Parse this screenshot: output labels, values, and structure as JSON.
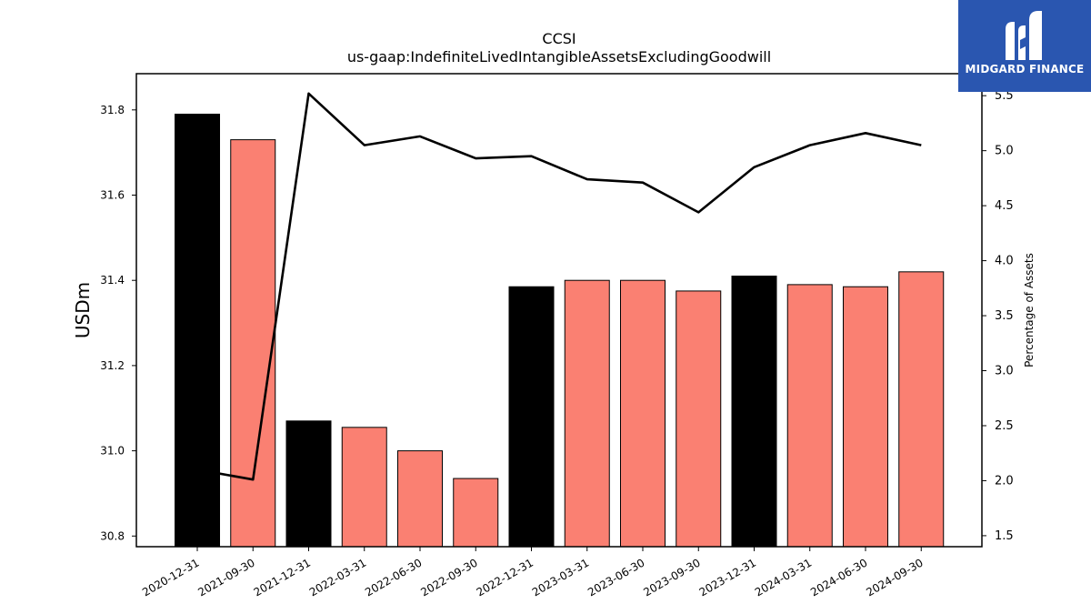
{
  "chart_data": {
    "type": "bar",
    "title": "CCSI",
    "subtitle": "us-gaap:IndefiniteLivedIntangibleAssetsExcludingGoodwill",
    "ylabel": "USDm",
    "y2label": "Percentage of Assets",
    "categories": [
      "2020-12-31",
      "2021-09-30",
      "2021-12-31",
      "2022-03-31",
      "2022-06-30",
      "2022-09-30",
      "2022-12-31",
      "2023-03-31",
      "2023-06-30",
      "2023-09-30",
      "2023-12-31",
      "2024-03-31",
      "2024-06-30",
      "2024-09-30"
    ],
    "series": [
      {
        "type": "bar",
        "values": [
          31.79,
          31.73,
          31.07,
          31.055,
          31.0,
          30.935,
          31.385,
          31.4,
          31.4,
          31.375,
          31.41,
          31.39,
          31.385,
          31.42
        ],
        "colors": [
          "#000000",
          "#fa8072",
          "#000000",
          "#fa8072",
          "#fa8072",
          "#fa8072",
          "#000000",
          "#fa8072",
          "#fa8072",
          "#fa8072",
          "#000000",
          "#fa8072",
          "#fa8072",
          "#fa8072"
        ]
      },
      {
        "type": "line",
        "axis": "right",
        "color": "#000000",
        "values": [
          2.1,
          2.01,
          5.52,
          5.05,
          5.13,
          4.93,
          4.95,
          4.74,
          4.71,
          4.44,
          4.85,
          5.05,
          5.16,
          5.05
        ]
      }
    ],
    "ylim": [
      30.775,
      31.885
    ],
    "yticks": [
      30.8,
      31.0,
      31.2,
      31.4,
      31.6,
      31.8
    ],
    "y2lim": [
      1.4,
      5.7
    ],
    "y2ticks": [
      1.5,
      2.0,
      2.5,
      3.0,
      3.5,
      4.0,
      4.5,
      5.0,
      5.5
    ],
    "grid": false,
    "legend": "none"
  },
  "logo": {
    "text": "MIDGARD FINANCE"
  }
}
